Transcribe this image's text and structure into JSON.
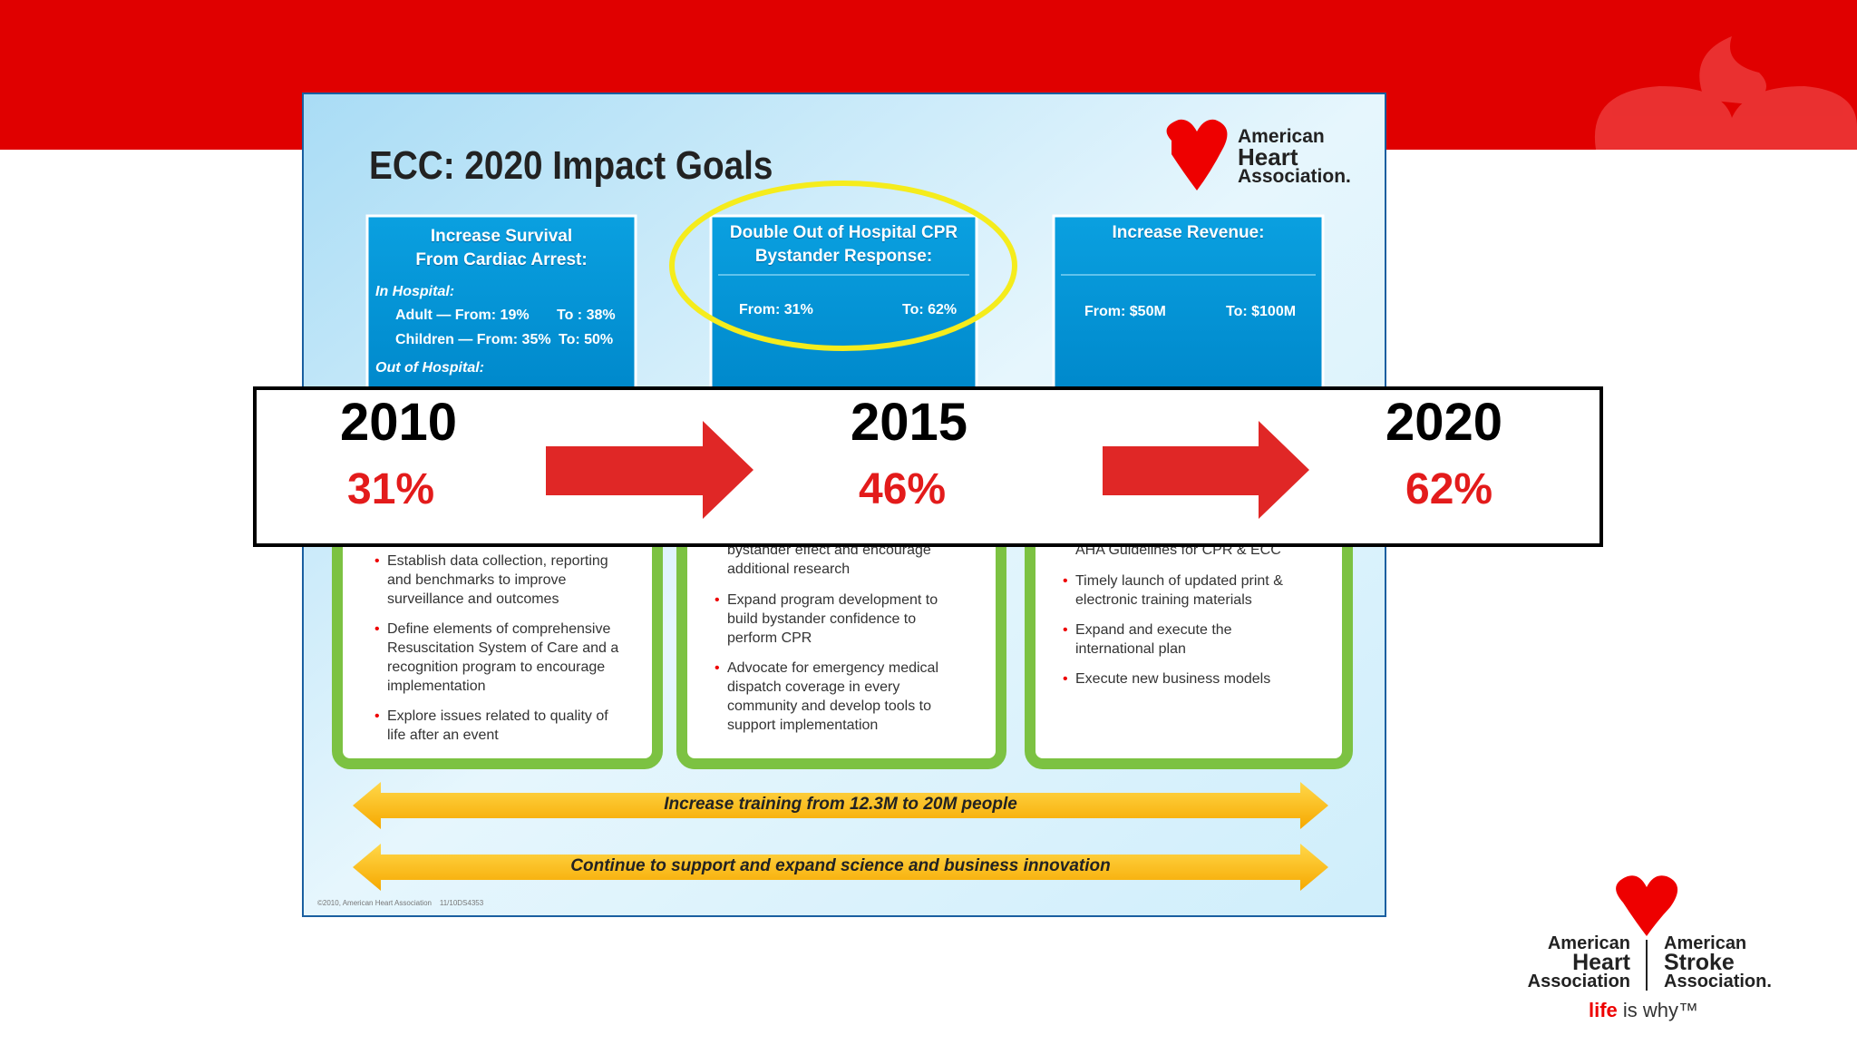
{
  "slide": {
    "title": "ECC: 2020 Impact Goals",
    "logo": [
      "American",
      "Heart",
      "Association."
    ],
    "goals": [
      {
        "heading": [
          "Increase Survival",
          "From Cardiac Arrest:"
        ],
        "in_hospital": "In Hospital:",
        "adult_from": "Adult — From: 19%",
        "adult_to": "To : 38%",
        "children_from": "Children — From: 35%",
        "children_to": "To: 50%",
        "out_of_hospital": "Out of Hospital:"
      },
      {
        "heading": [
          "Double Out of Hospital CPR",
          "Bystander Response:"
        ],
        "from": "From: 31%",
        "to": "To: 62%"
      },
      {
        "heading": [
          "Increase Revenue:"
        ],
        "from": "From: $50M",
        "to": "To: $100M"
      }
    ],
    "actions": [
      {
        "partial": [],
        "bullets": [
          "Establish data collection, reporting and benchmarks to improve surveillance and outcomes",
          "Define elements of comprehensive Resuscitation System of Care and a recognition program to encourage implementation",
          "Explore issues related to quality of life after an event"
        ]
      },
      {
        "partial": [
          "bystander effect and encourage",
          "additional research"
        ],
        "bullets": [
          "Expand program development to build bystander confidence to perform CPR",
          "Advocate for emergency medical dispatch coverage in every community and develop tools to support implementation"
        ]
      },
      {
        "partial": [
          "AHA Guidelines for CPR & ECC"
        ],
        "bullets": [
          "Timely launch of updated print & electronic training materials",
          "Expand and execute the international plan",
          "Execute new business models"
        ]
      }
    ],
    "banners": [
      "Increase training from 12.3M to 20M people",
      "Continue to support and expand science and business innovation"
    ],
    "copyright": "©2010, American Heart Association    11/10DS4353"
  },
  "timeline": {
    "steps": [
      {
        "year": "2010",
        "percent": "31%"
      },
      {
        "year": "2015",
        "percent": "46%"
      },
      {
        "year": "2020",
        "percent": "62%"
      }
    ]
  },
  "footer_logo": {
    "left": [
      "American",
      "Heart",
      "Association"
    ],
    "right": [
      "American",
      "Stroke",
      "Association."
    ],
    "tagline_bold": "life",
    "tagline_rest": "is why™"
  }
}
